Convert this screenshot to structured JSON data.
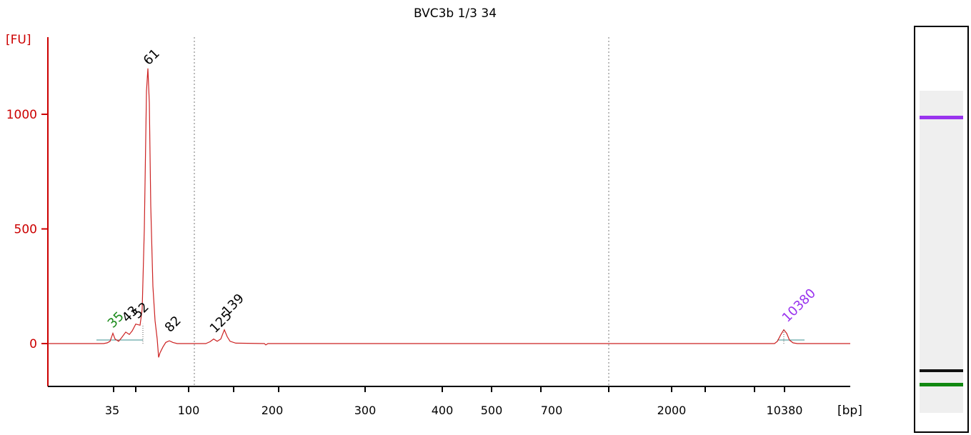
{
  "chart_data": {
    "type": "line",
    "title": "BVC3b 1/3 34",
    "ylabel": "[FU]",
    "xlabel": "[bp]",
    "y_ticks": [
      0,
      500,
      1000
    ],
    "ylim": [
      -190,
      1330
    ],
    "x_tick_labels": [
      "35",
      "100",
      "200",
      "300",
      "400",
      "500",
      "700",
      "2000",
      "10380"
    ],
    "peaks": [
      {
        "label": "35",
        "color": "#1a8a1a",
        "height": 45
      },
      {
        "label": "43",
        "color": "#000000",
        "height": 50
      },
      {
        "label": "52",
        "color": "#000000",
        "height": 85
      },
      {
        "label": "61",
        "color": "#000000",
        "height": 1200
      },
      {
        "label": "82",
        "color": "#000000",
        "height": 12
      },
      {
        "label": "125",
        "color": "#000000",
        "height": 20
      },
      {
        "label": "139",
        "color": "#000000",
        "height": 60
      },
      {
        "label": "10380",
        "color": "#9933ee",
        "height": 60
      }
    ],
    "trace_color": "#cc2222",
    "axis_color": "#cc0000",
    "grid": false
  },
  "gel": {
    "bands": [
      {
        "name": "upper-marker",
        "color": "#9933ee"
      },
      {
        "name": "sample",
        "color": "#111111"
      },
      {
        "name": "lower-marker",
        "color": "#118811"
      }
    ]
  }
}
